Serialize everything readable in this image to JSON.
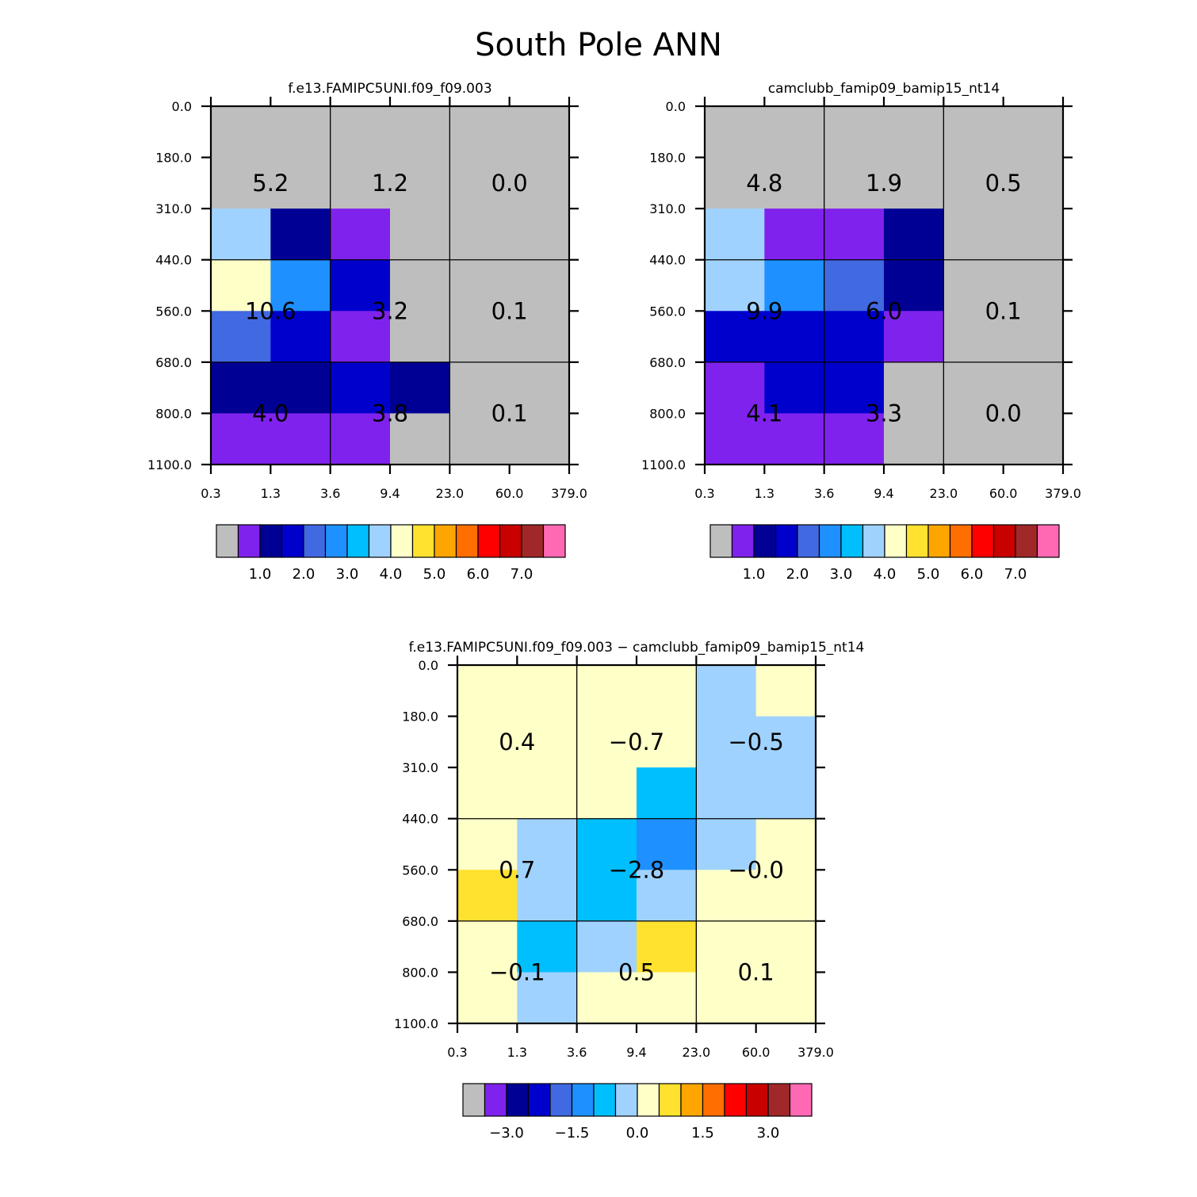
{
  "title": "South Pole ANN",
  "colors": {
    "base": [
      "#bebebe",
      "#8022ee",
      "#000095",
      "#0000cd",
      "#4169e1",
      "#1e90ff",
      "#00bfff",
      "#a0d2ff",
      "#ffffc8",
      "#ffe130",
      "#ffa500",
      "#ff6e00",
      "#ff0000",
      "#c80000",
      "#a02828",
      "#ff69b4"
    ]
  },
  "chart_data": [
    {
      "type": "heatmap",
      "title": "f.e13.FAMIPC5UNI.f09_f09.003",
      "x_ticks": [
        "0.3",
        "1.3",
        "3.6",
        "9.4",
        "23.0",
        "60.0",
        "379.0"
      ],
      "y_ticks": [
        "0.0",
        "180.0",
        "310.0",
        "440.0",
        "560.0",
        "680.0",
        "800.0",
        "1100.0"
      ],
      "cells": [
        [
          0,
          0,
          0,
          0,
          0,
          0
        ],
        [
          0,
          0,
          0,
          0,
          0,
          0
        ],
        [
          7,
          2,
          1,
          0,
          0,
          0
        ],
        [
          8,
          5,
          3,
          0,
          0,
          0
        ],
        [
          4,
          3,
          1,
          0,
          0,
          0
        ],
        [
          2,
          2,
          3,
          2,
          0,
          0
        ],
        [
          1,
          1,
          1,
          0,
          0,
          0
        ]
      ],
      "aggregates": [
        [
          "5.2",
          "1.2",
          "0.0"
        ],
        [
          "10.6",
          "3.2",
          "0.1"
        ],
        [
          "4.0",
          "3.8",
          "0.1"
        ]
      ],
      "colorbar_labels": [
        "1.0",
        "2.0",
        "3.0",
        "4.0",
        "5.0",
        "6.0",
        "7.0"
      ]
    },
    {
      "type": "heatmap",
      "title": "camclubb_famip09_bamip15_nt14",
      "x_ticks": [
        "0.3",
        "1.3",
        "3.6",
        "9.4",
        "23.0",
        "60.0",
        "379.0"
      ],
      "y_ticks": [
        "0.0",
        "180.0",
        "310.0",
        "440.0",
        "560.0",
        "680.0",
        "800.0",
        "1100.0"
      ],
      "cells": [
        [
          0,
          0,
          0,
          0,
          0,
          0
        ],
        [
          0,
          0,
          0,
          0,
          0,
          0
        ],
        [
          7,
          1,
          1,
          2,
          0,
          0
        ],
        [
          7,
          5,
          4,
          2,
          0,
          0
        ],
        [
          3,
          3,
          3,
          1,
          0,
          0
        ],
        [
          1,
          3,
          3,
          0,
          0,
          0
        ],
        [
          1,
          1,
          1,
          0,
          0,
          0
        ]
      ],
      "aggregates": [
        [
          "4.8",
          "1.9",
          "0.5"
        ],
        [
          "9.9",
          "6.0",
          "0.1"
        ],
        [
          "4.1",
          "3.3",
          "0.0"
        ]
      ],
      "colorbar_labels": [
        "1.0",
        "2.0",
        "3.0",
        "4.0",
        "5.0",
        "6.0",
        "7.0"
      ]
    },
    {
      "type": "heatmap",
      "title": "f.e13.FAMIPC5UNI.f09_f09.003 − camclubb_famip09_bamip15_nt14",
      "x_ticks": [
        "0.3",
        "1.3",
        "3.6",
        "9.4",
        "23.0",
        "60.0",
        "379.0"
      ],
      "y_ticks": [
        "0.0",
        "180.0",
        "310.0",
        "440.0",
        "560.0",
        "680.0",
        "800.0",
        "1100.0"
      ],
      "cells": [
        [
          8,
          8,
          8,
          8,
          7,
          8
        ],
        [
          8,
          8,
          8,
          8,
          7,
          7
        ],
        [
          8,
          8,
          8,
          6,
          7,
          7
        ],
        [
          8,
          7,
          6,
          5,
          7,
          8
        ],
        [
          9,
          7,
          6,
          7,
          8,
          8
        ],
        [
          8,
          6,
          7,
          9,
          8,
          8
        ],
        [
          8,
          7,
          8,
          8,
          8,
          8
        ]
      ],
      "aggregates": [
        [
          "0.4",
          "−0.7",
          "−0.5"
        ],
        [
          "0.7",
          "−2.8",
          "−0.0"
        ],
        [
          "−0.1",
          "0.5",
          "0.1"
        ]
      ],
      "colorbar_labels": [
        "−3.0",
        "−1.5",
        "0.0",
        "1.5",
        "3.0"
      ]
    }
  ]
}
